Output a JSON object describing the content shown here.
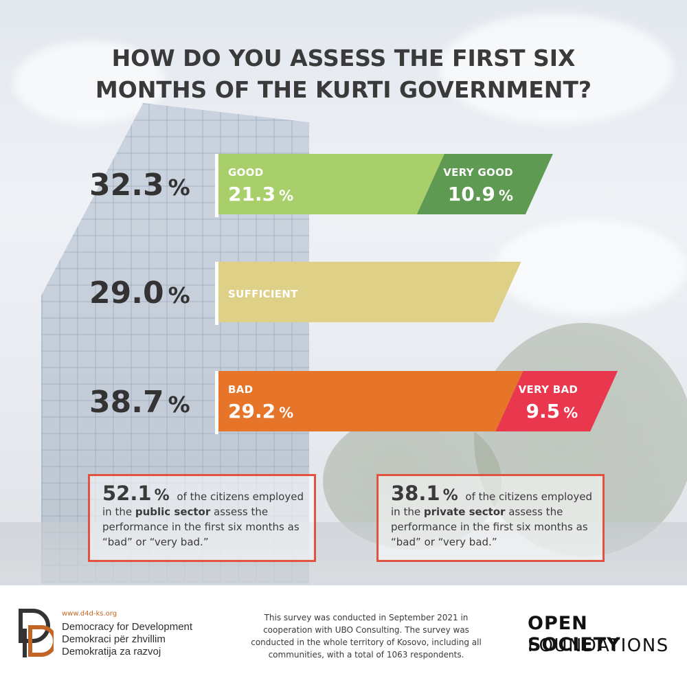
{
  "title_line1": "HOW DO YOU ASSESS THE FIRST SIX",
  "title_line2": "MONTHS OF THE KURTI GOVERNMENT?",
  "chart_data": {
    "type": "bar",
    "orientation": "horizontal",
    "stacked": true,
    "rows": [
      {
        "total": "32.3",
        "total_unit": "%",
        "segments": [
          {
            "label": "GOOD",
            "value": 21.3,
            "value_text": "21.3",
            "unit": "%",
            "color": "#a8cf6a"
          },
          {
            "label": "VERY GOOD",
            "value": 10.9,
            "value_text": "10.9",
            "unit": "%",
            "color": "#5e9a52"
          }
        ]
      },
      {
        "total": "29.0",
        "total_unit": "%",
        "segments": [
          {
            "label": "SUFFICIENT",
            "value": 29.0,
            "value_text": "",
            "unit": "",
            "color": "#ded087"
          }
        ]
      },
      {
        "total": "38.7",
        "total_unit": "%",
        "segments": [
          {
            "label": "BAD",
            "value": 29.2,
            "value_text": "29.2",
            "unit": "%",
            "color": "#e67429"
          },
          {
            "label": "VERY BAD",
            "value": 9.5,
            "value_text": "9.5",
            "unit": "%",
            "color": "#e9384e"
          }
        ]
      }
    ]
  },
  "callouts": {
    "public": {
      "value": "52.1",
      "unit": "%",
      "text_a": "of the citizens employed in the",
      "emph": "public sector",
      "text_b": "assess the performance in the first six months as “bad” or “very bad.”"
    },
    "private": {
      "value": "38.1",
      "unit": "%",
      "text_a": "of the citizens employed in the",
      "emph": "private sector",
      "text_b": "assess the performance in the first six months as “bad” or “very bad.”"
    }
  },
  "footer": {
    "url": "www.d4d-ks.org",
    "org_en": "Democracy for Development",
    "org_sq": "Demokraci për zhvillim",
    "org_sr": "Demokratija za razvoj",
    "note": "This survey was conducted in September 2021 in cooperation with UBO Consulting. The survey was conducted in the whole territory of Kosovo, including all communities, with a total of 1063 respondents.",
    "osf_line1": "OPEN SOCIETY",
    "osf_line2": "FOUNDATIONS"
  },
  "colors": {
    "callout_border": "#e25240",
    "logo_dark": "#333333",
    "logo_orange": "#c16626"
  }
}
